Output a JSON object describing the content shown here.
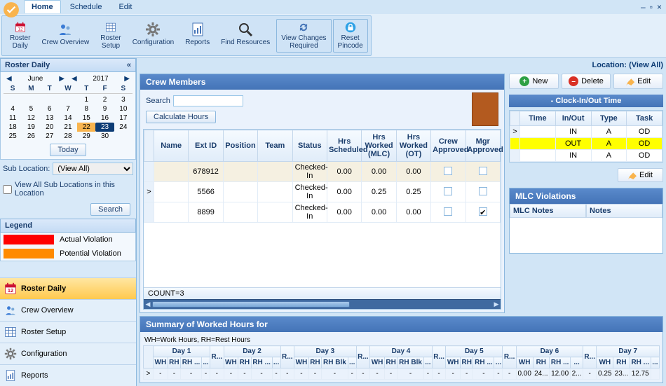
{
  "window": {
    "controls": [
      "–",
      "▫",
      "×"
    ]
  },
  "tabs": [
    {
      "label": "Home",
      "active": true
    },
    {
      "label": "Schedule",
      "active": false
    },
    {
      "label": "Edit",
      "active": false
    }
  ],
  "ribbon": [
    {
      "name": "roster-daily",
      "label": "Roster\nDaily",
      "icon": "calendar-red"
    },
    {
      "name": "crew-overview",
      "label": "Crew Overview",
      "icon": "people"
    },
    {
      "name": "roster-setup",
      "label": "Roster\nSetup",
      "icon": "grid"
    },
    {
      "name": "configuration",
      "label": "Configuration",
      "icon": "gear"
    },
    {
      "name": "reports",
      "label": "Reports",
      "icon": "report"
    },
    {
      "name": "find-resources",
      "label": "Find Resources",
      "icon": "magnifier"
    },
    {
      "name": "view-changes-required",
      "label": "View Changes\nRequired",
      "icon": "refresh",
      "boxed": true
    },
    {
      "name": "reset-pincode",
      "label": "Reset\nPincode",
      "icon": "lock",
      "boxed": true
    }
  ],
  "left": {
    "header": "Roster Daily",
    "calendar": {
      "month_label": "June",
      "year_label": "2017",
      "dow": [
        "S",
        "M",
        "T",
        "W",
        "T",
        "F",
        "S"
      ],
      "weeks": [
        [
          "",
          "",
          "",
          "",
          "1",
          "2",
          "3"
        ],
        [
          "4",
          "5",
          "6",
          "7",
          "8",
          "9",
          "10"
        ],
        [
          "11",
          "12",
          "13",
          "14",
          "15",
          "16",
          "17"
        ],
        [
          "18",
          "19",
          "20",
          "21",
          "22",
          "23",
          "24"
        ],
        [
          "25",
          "26",
          "27",
          "28",
          "29",
          "30",
          ""
        ]
      ],
      "selected": "22",
      "today": "23",
      "today_btn": "Today"
    },
    "sub_location_label": "Sub Location:",
    "sub_location_value": "(View All)",
    "view_all_sub": "View All Sub Locations in this Location",
    "search_btn": "Search",
    "legend_title": "Legend",
    "legend": [
      {
        "color": "#ff0000",
        "label": "Actual Violation"
      },
      {
        "color": "#ff8a00",
        "label": "Potential Violation"
      }
    ],
    "nav": [
      {
        "label": "Roster Daily",
        "active": true,
        "icon": "calendar-red"
      },
      {
        "label": "Crew Overview",
        "active": false,
        "icon": "people"
      },
      {
        "label": "Roster Setup",
        "active": false,
        "icon": "grid"
      },
      {
        "label": "Configuration",
        "active": false,
        "icon": "gear"
      },
      {
        "label": "Reports",
        "active": false,
        "icon": "report"
      }
    ]
  },
  "location_label": "Location: (View All)",
  "crew": {
    "title": "Crew Members",
    "search_label": "Search",
    "calc_btn": "Calculate Hours",
    "columns": [
      "Name",
      "Ext ID",
      "Position",
      "Team",
      "Status",
      "Hrs Scheduled",
      "Hrs Worked (MLC)",
      "Hrs Worked (OT)",
      "Crew Approved",
      "Mgr Approved"
    ],
    "rows": [
      {
        "name": "",
        "ext": "678912",
        "pos": "",
        "team": "",
        "status": "Checked-In",
        "sched": "0.00",
        "mlc": "0.00",
        "ot": "0.00",
        "crew": false,
        "mgr": false,
        "hdl": ""
      },
      {
        "name": "",
        "ext": "5566",
        "pos": "",
        "team": "",
        "status": "Checked-In",
        "sched": "0.00",
        "mlc": "0.25",
        "ot": "0.25",
        "crew": false,
        "mgr": false,
        "hdl": ">"
      },
      {
        "name": "",
        "ext": "8899",
        "pos": "",
        "team": "",
        "status": "Checked-In",
        "sched": "0.00",
        "mlc": "0.00",
        "ot": "0.00",
        "crew": false,
        "mgr": true,
        "hdl": ""
      }
    ],
    "count_label": "COUNT=3"
  },
  "actions": {
    "new_label": "New",
    "new_color": "#2ea043",
    "delete_label": "Delete",
    "delete_color": "#d93025",
    "edit_label": "Edit"
  },
  "clock": {
    "title": "- Clock-In/Out Time",
    "columns": [
      "Time",
      "In/Out",
      "Type",
      "Task"
    ],
    "rows": [
      {
        "time": "",
        "io": "IN",
        "type": "A",
        "task": "OD",
        "hdl": ">",
        "hl": false
      },
      {
        "time": "",
        "io": "OUT",
        "type": "A",
        "task": "OD",
        "hdl": "",
        "hl": true
      },
      {
        "time": "",
        "io": "IN",
        "type": "A",
        "task": "OD",
        "hdl": "",
        "hl": false
      }
    ],
    "edit_label": "Edit"
  },
  "mlc": {
    "title": "MLC Violations",
    "col1": "MLC Notes",
    "col2": "Notes"
  },
  "summary": {
    "title": "Summary of Worked Hours for ",
    "legend_text": "WH=Work Hours, RH=Rest Hours",
    "days": [
      "Day 1",
      "Day 2",
      "Day 3",
      "Day 4",
      "Day 5",
      "Day 6",
      "Day 7"
    ],
    "sub": [
      "WH",
      "RH",
      "RH ...",
      "..."
    ],
    "sub_alt": [
      "WH",
      "RH",
      "RH Blk",
      "..."
    ],
    "r_head": "R...",
    "row_wh": [
      [
        "-",
        "-",
        "-",
        "-"
      ],
      [
        "-"
      ],
      [
        "-",
        "-",
        "-",
        "-"
      ],
      [
        "-"
      ],
      [
        "-",
        "-",
        "-",
        "-"
      ],
      [
        "-"
      ],
      [
        "-",
        "-",
        "-",
        "-"
      ],
      [
        "-"
      ],
      [
        "-",
        "-",
        "-",
        "-"
      ],
      [
        "-"
      ],
      [
        "0.00",
        "24...",
        "12.00",
        "2..."
      ],
      [
        "-"
      ],
      [
        "0.25",
        "23...",
        "12.75",
        ""
      ]
    ]
  },
  "colors": {
    "panel_title_start": "#5a8acb",
    "panel_title_end": "#4474b7",
    "border": "#8cb8de",
    "body_bg": "#d1e5f6"
  }
}
